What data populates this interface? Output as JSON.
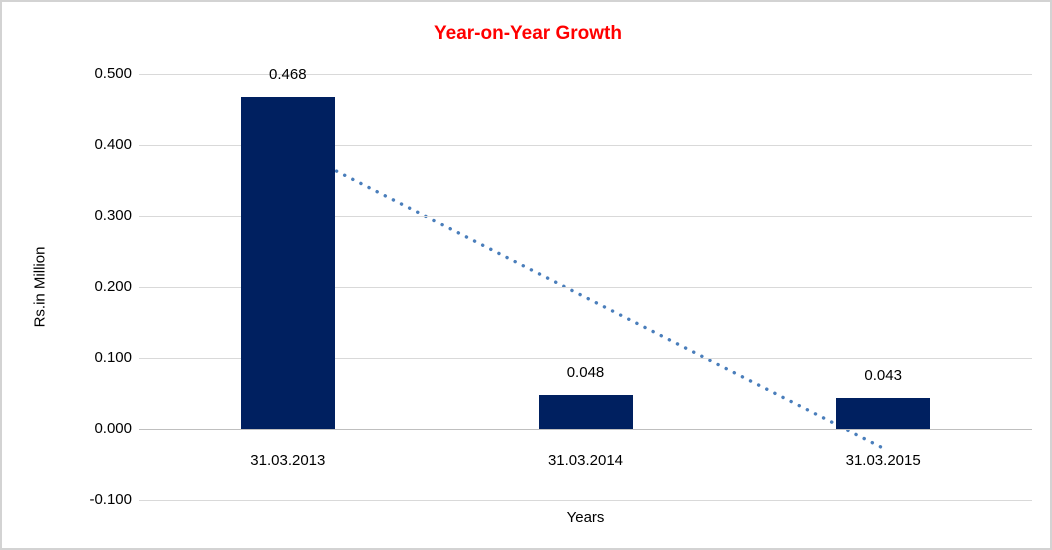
{
  "chart_data": {
    "type": "bar",
    "title": "Year-on-Year Growth",
    "xlabel": "Years",
    "ylabel": "Rs.in Million",
    "categories": [
      "31.03.2013",
      "31.03.2014",
      "31.03.2015"
    ],
    "values": [
      0.468,
      0.048,
      0.043
    ],
    "data_labels": [
      "0.468",
      "0.048",
      "0.043"
    ],
    "ytick_values": [
      0.5,
      0.4,
      0.3,
      0.2,
      0.1,
      0.0,
      -0.1
    ],
    "ytick_labels": [
      "0.500",
      "0.400",
      "0.300",
      "0.200",
      "0.100",
      "0.000",
      "-0.100"
    ],
    "ylim": [
      -0.1,
      0.5
    ],
    "grid": true,
    "legend_position": "none",
    "colors": {
      "bar": "#002060",
      "title": "#ff0000",
      "gridline": "#d9d9d9",
      "axis_line": "#bfbfbf",
      "trendline": "#4a7ebb",
      "text": "#000000"
    },
    "trendline": {
      "type": "linear",
      "style": "dotted",
      "start_value": 0.398,
      "end_value": -0.027
    }
  }
}
